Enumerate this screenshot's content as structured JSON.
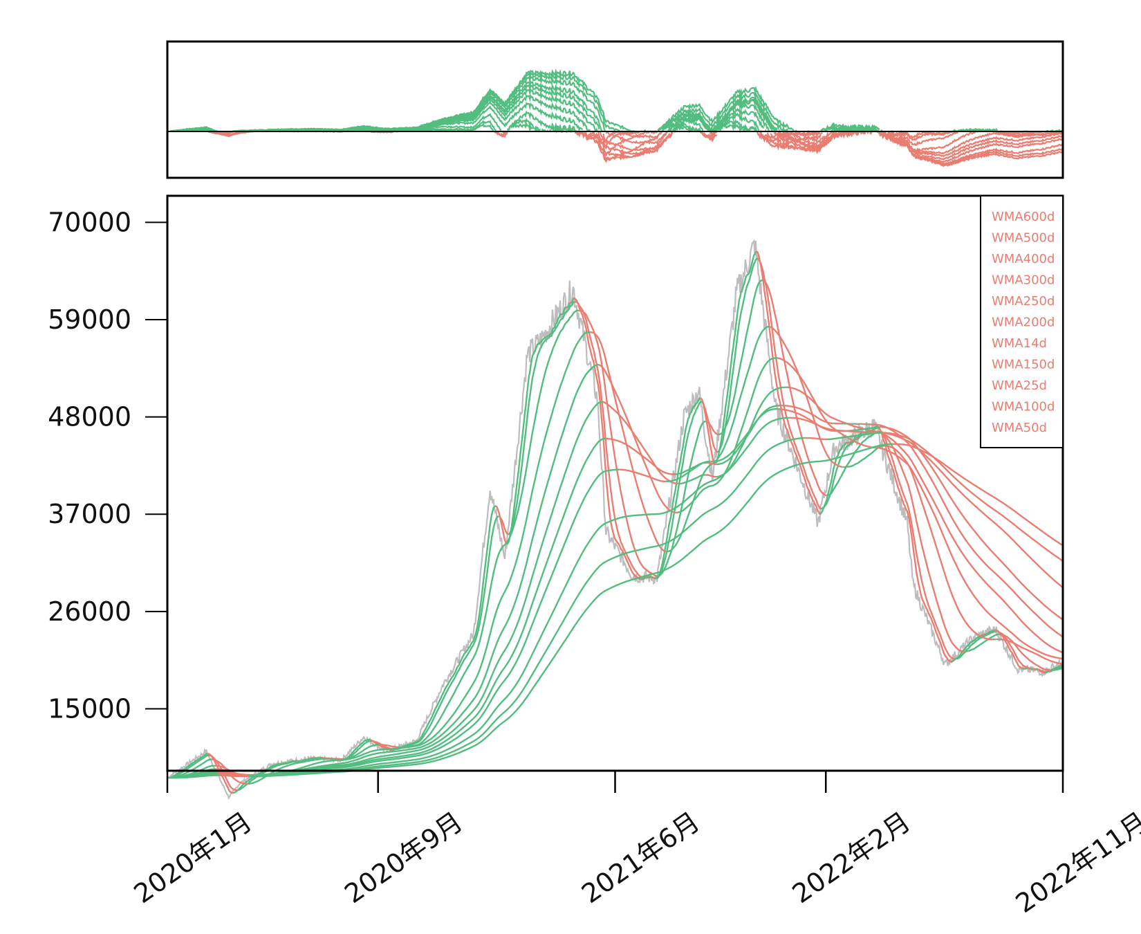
{
  "chart_data": {
    "type": "line",
    "title": "",
    "xlabel": "",
    "ylabel": "",
    "x_range": [
      "2020-01-01",
      "2022-11-01"
    ],
    "ylim": [
      8000,
      73000
    ],
    "x_ticks": [
      "2020年1月",
      "2020年9月",
      "2021年6月",
      "2022年2月",
      "2022年11月"
    ],
    "y_ticks": [
      15000,
      26000,
      37000,
      48000,
      59000,
      70000
    ],
    "colors": {
      "price": "#bdbdbd",
      "up": "#52bd7f",
      "down": "#e97d71",
      "zero_line": "#000000"
    },
    "legend": {
      "position": "top-right",
      "entries": [
        "WMA600d",
        "WMA500d",
        "WMA400d",
        "WMA300d",
        "WMA250d",
        "WMA200d",
        "WMA14d",
        "WMA150d",
        "WMA25d",
        "WMA100d",
        "WMA50d"
      ]
    },
    "price": {
      "x": [
        "2020-01-01",
        "2020-02-15",
        "2020-03-12",
        "2020-03-25",
        "2020-05-01",
        "2020-06-15",
        "2020-07-20",
        "2020-08-15",
        "2020-09-10",
        "2020-10-15",
        "2020-11-15",
        "2020-12-20",
        "2021-01-08",
        "2021-01-25",
        "2021-02-20",
        "2021-03-10",
        "2021-04-14",
        "2021-05-12",
        "2021-05-22",
        "2021-06-22",
        "2021-07-20",
        "2021-08-20",
        "2021-09-06",
        "2021-09-22",
        "2021-10-20",
        "2021-11-10",
        "2021-12-04",
        "2022-01-22",
        "2022-02-10",
        "2022-03-28",
        "2022-05-05",
        "2022-05-12",
        "2022-06-18",
        "2022-07-20",
        "2022-08-15",
        "2022-09-10",
        "2022-10-10",
        "2022-11-01"
      ],
      "y": [
        7200,
        10200,
        5000,
        6600,
        8800,
        9400,
        9200,
        11800,
        10200,
        11400,
        17800,
        23500,
        40000,
        32000,
        55000,
        57000,
        62500,
        50000,
        35000,
        30000,
        29800,
        48000,
        51000,
        41000,
        62000,
        67500,
        49000,
        36000,
        44500,
        47000,
        36000,
        29000,
        20000,
        23000,
        24000,
        19500,
        19200,
        20200
      ]
    },
    "series": [
      {
        "name": "WMA14d",
        "lag_days": 7
      },
      {
        "name": "WMA25d",
        "lag_days": 12
      },
      {
        "name": "WMA50d",
        "lag_days": 25
      },
      {
        "name": "WMA100d",
        "lag_days": 50
      },
      {
        "name": "WMA150d",
        "lag_days": 75
      },
      {
        "name": "WMA200d",
        "lag_days": 100
      },
      {
        "name": "WMA250d",
        "lag_days": 125
      },
      {
        "name": "WMA300d",
        "lag_days": 150
      },
      {
        "name": "WMA400d",
        "lag_days": 200
      },
      {
        "name": "WMA500d",
        "lag_days": 250
      },
      {
        "name": "WMA600d",
        "lag_days": 300
      }
    ]
  }
}
